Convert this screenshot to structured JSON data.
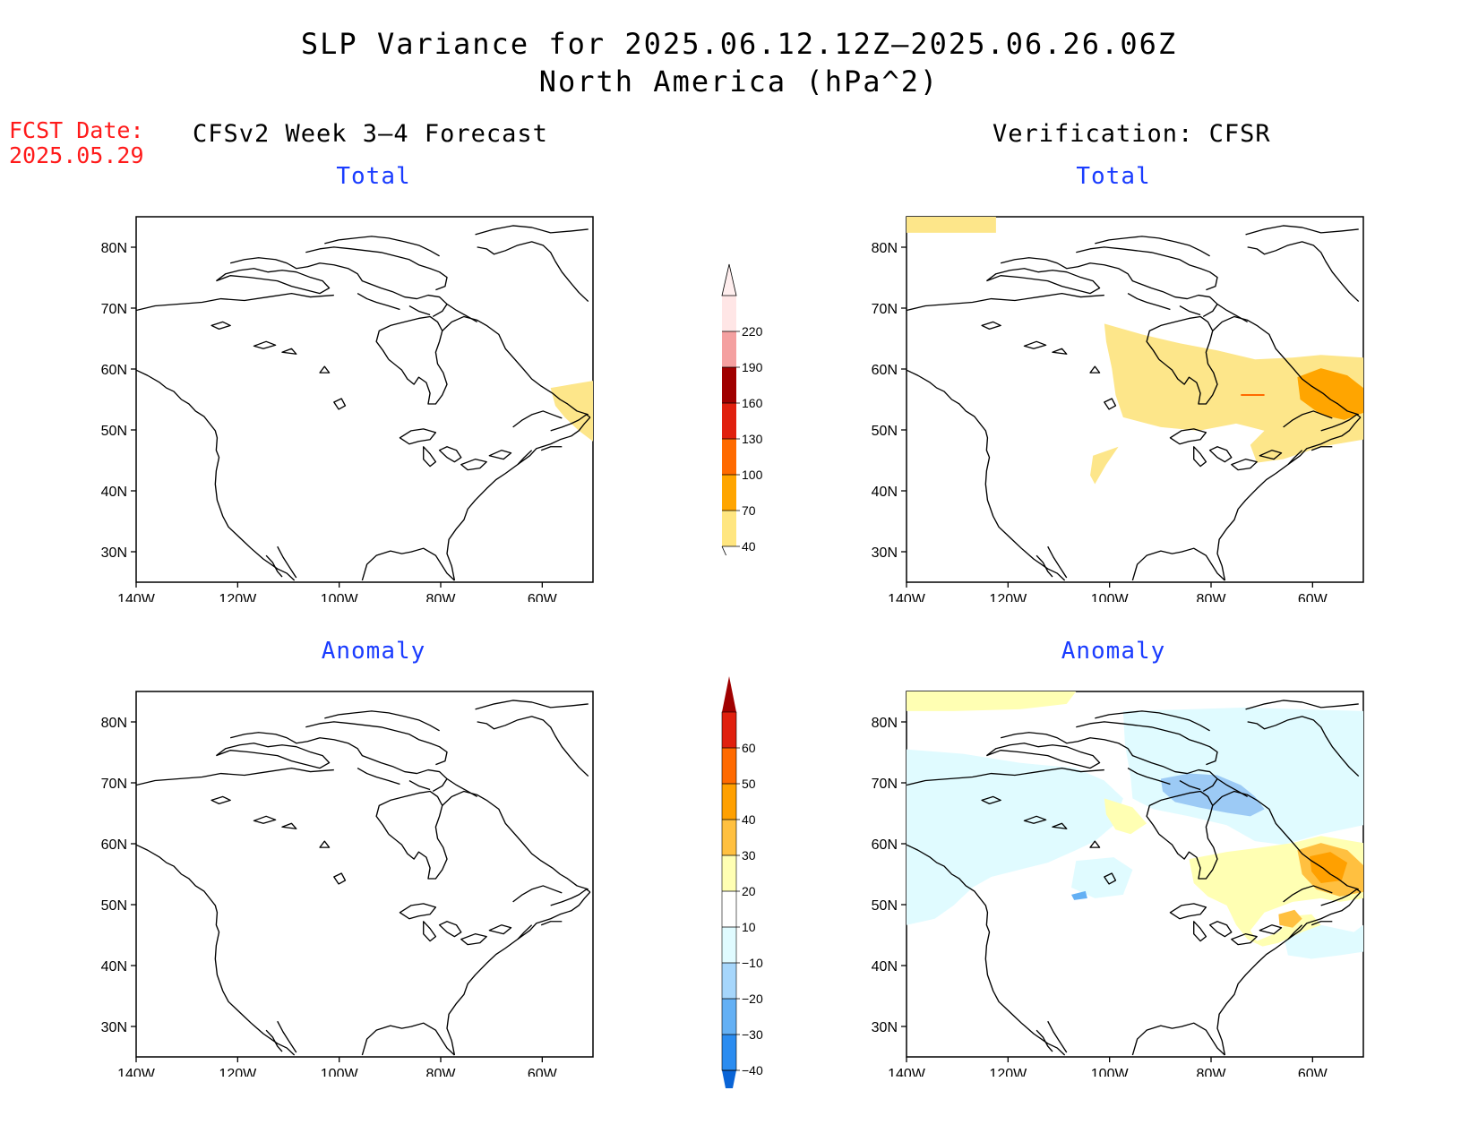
{
  "title": {
    "line1": "SLP Variance for 2025.06.12.12Z–2025.06.26.06Z",
    "line2": "North America (hPa^2)"
  },
  "fcst": {
    "label": "FCST Date:",
    "date": "2025.05.29"
  },
  "columns": {
    "left": "CFSv2 Week 3–4 Forecast",
    "right": "Verification: CFSR"
  },
  "panels": {
    "fcst_total": {
      "title": "Total"
    },
    "verif_total": {
      "title": "Total"
    },
    "fcst_anom": {
      "title": "Anomaly"
    },
    "verif_anom": {
      "title": "Anomaly"
    }
  },
  "map": {
    "lon_labels": [
      "140W",
      "120W",
      "100W",
      "80W",
      "60W"
    ],
    "lon_values": [
      -140,
      -120,
      -100,
      -80,
      -60
    ],
    "lat_labels": [
      "80N",
      "70N",
      "60N",
      "50N",
      "40N",
      "30N"
    ],
    "lat_values": [
      80,
      70,
      60,
      50,
      40,
      30
    ],
    "lon_range": [
      -140,
      -50
    ],
    "lat_range": [
      25,
      85
    ]
  },
  "colorbars": {
    "total": {
      "labels": [
        "40",
        "70",
        "100",
        "130",
        "160",
        "190",
        "220"
      ],
      "colors": [
        "#ffe680",
        "#ffa500",
        "#ff6a00",
        "#e0200e",
        "#a00000",
        "#f4a0a0",
        "#ffe6e6"
      ]
    },
    "anomaly": {
      "labels": [
        "−40",
        "−30",
        "−20",
        "−10",
        "10",
        "20",
        "30",
        "40",
        "50",
        "60"
      ],
      "colors": [
        "#0a64d6",
        "#2a8cf0",
        "#64b0f4",
        "#a6d6fb",
        "#e0fbff",
        "#ffffff",
        "#ffffb3",
        "#ffc040",
        "#ffa000",
        "#ff6a00",
        "#e0200e",
        "#a00000"
      ]
    }
  }
}
